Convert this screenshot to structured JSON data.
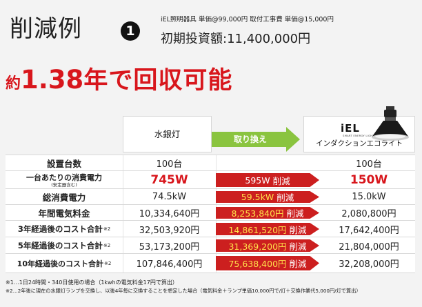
{
  "header": {
    "title": "削減例",
    "number": "1",
    "price_note": "iEL照明器具 単価@99,000円 取付工事費 単価@15,000円",
    "initial_cost": "初期投資額:11,400,000円"
  },
  "headline": {
    "prefix": "約",
    "value": "1.38",
    "suffix": "年で回収可能"
  },
  "columns": {
    "old": "水銀灯",
    "arrow": "取り換え",
    "new_brand": "iEL",
    "new_brand_tag": "SMART ENERGY LIGHTING",
    "new": "インダクションエコライト"
  },
  "rows": [
    {
      "label": "設置台数",
      "old": "100台",
      "diff": "",
      "new": "100台"
    },
    {
      "label": "一台あたりの消費電力",
      "label_note": "(安定器含む)",
      "old": "745W",
      "diff_value": "595W",
      "diff_word": "削減",
      "new": "150W"
    },
    {
      "label": "総消費電力",
      "old": "74.5kW",
      "diff_value": "59.5kW",
      "diff_word": "削減",
      "new": "15.0kW"
    },
    {
      "label": "年間電気料金",
      "old": "10,334,640円",
      "diff_value": "8,253,840円",
      "diff_word": "削減",
      "new": "2,080,800円"
    },
    {
      "label": "3年経過後のコスト合計",
      "label_mark": "※2",
      "old": "32,503,920円",
      "diff_value": "14,861,520円",
      "diff_word": "削減",
      "new": "17,642,400円"
    },
    {
      "label": "5年経過後のコスト合計",
      "label_mark": "※2",
      "old": "53,173,200円",
      "diff_value": "31,369,200円",
      "diff_word": "削減",
      "new": "21,804,000円"
    },
    {
      "label": "10年経過後のコスト合計",
      "label_mark": "※2",
      "old": "107,846,400円",
      "diff_value": "75,638,400円",
      "diff_word": "削減",
      "new": "32,208,000円"
    }
  ],
  "footnotes": [
    "※1…1日24時間・340日使用の場合（1kwhの電気料金17円で算出）",
    "※2…2年後に現在の水銀灯ランプを交換し、以後4年毎に交換することを想定した場合（電気料金＋ランプ単価10,000円で/灯＋交換作業代5,000円/灯で算出）"
  ],
  "colors": {
    "accent_red": "#d8161c",
    "arrow_green": "#8ac43f",
    "highlight_yellow": "#ffe14a"
  }
}
